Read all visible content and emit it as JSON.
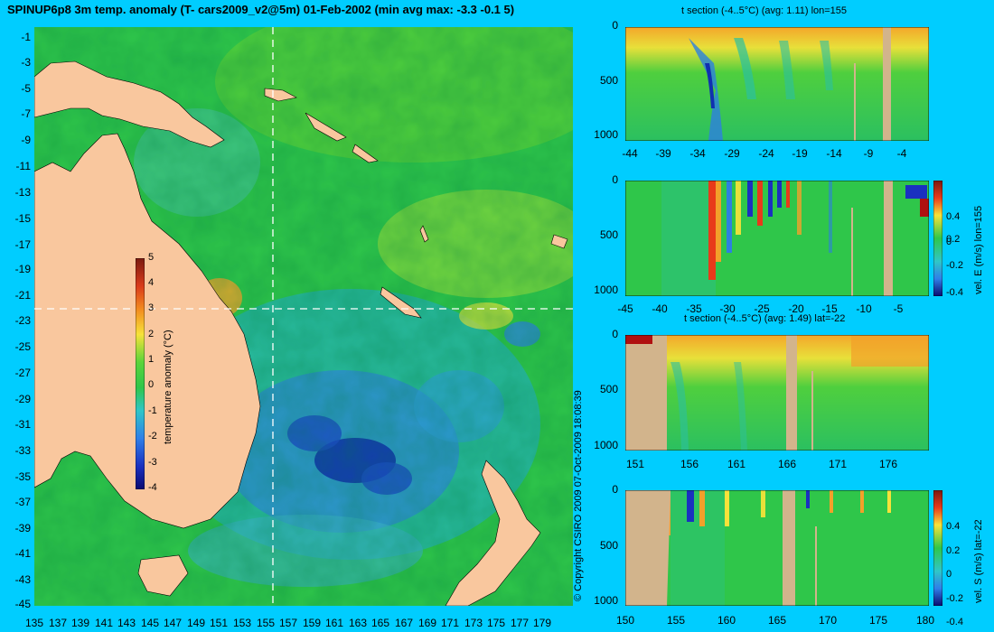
{
  "title": "SPINUP6p8 3m temp. anomaly (T- cars2009_v2@5m) 01-Feb-2002 (min avg max: -3.3 -0.1 5)",
  "copyright": "© Copyright CSIRO 2009   07-Oct-2009 18:08:39",
  "colors": {
    "background": "#00cdff",
    "land": "#f9c79e",
    "section_land": "#d2b48c"
  },
  "map": {
    "lat_labels": [
      "-1",
      "-3",
      "-5",
      "-7",
      "-9",
      "-11",
      "-13",
      "-15",
      "-17",
      "-19",
      "-21",
      "-23",
      "-25",
      "-27",
      "-29",
      "-31",
      "-33",
      "-35",
      "-37",
      "-39",
      "-41",
      "-43",
      "-45"
    ],
    "lon_labels": [
      "135",
      "137",
      "139",
      "141",
      "143",
      "145",
      "147",
      "149",
      "151",
      "153",
      "155",
      "157",
      "159",
      "161",
      "163",
      "165",
      "167",
      "169",
      "171",
      "173",
      "175",
      "177",
      "179"
    ],
    "section_lon": 155,
    "section_lat": -22
  },
  "colorbar_main": {
    "ticks": [
      "5",
      "4",
      "3",
      "2",
      "1",
      "0",
      "-1",
      "-2",
      "-3",
      "-4"
    ],
    "label": "temperature anomaly (°C)"
  },
  "panels": {
    "p1": {
      "title": "t section (-4..5°C) (avg: 1.11) lon=155",
      "xticks": [
        "-44",
        "-39",
        "-34",
        "-29",
        "-24",
        "-19",
        "-14",
        "-9",
        "-4"
      ],
      "yticks": [
        "0",
        "500",
        "1000"
      ]
    },
    "p2": {
      "title": "",
      "xticks": [
        "-45",
        "-40",
        "-35",
        "-30",
        "-25",
        "-20",
        "-15",
        "-10",
        "-5"
      ],
      "yticks": [
        "0",
        "500",
        "1000"
      ],
      "cbar_ticks": [
        "0.4",
        "0.2",
        "0",
        "-0.2",
        "-0.4"
      ],
      "cbar_label": "vel. E (m/s) lon=155"
    },
    "p3": {
      "title": "t section (-4..5°C) (avg: 1.49) lat=-22",
      "xticks": [
        "151",
        "156",
        "161",
        "166",
        "171",
        "176"
      ],
      "yticks": [
        "0",
        "500",
        "1000"
      ]
    },
    "p4": {
      "title": "",
      "xticks": [
        "150",
        "155",
        "160",
        "165",
        "170",
        "175",
        "180"
      ],
      "yticks": [
        "0",
        "500",
        "1000"
      ],
      "cbar_ticks": [
        "0.4",
        "0.2",
        "0",
        "-0.2",
        "-0.4"
      ],
      "cbar_label": "vel. S (m/s) lat=-22"
    }
  }
}
